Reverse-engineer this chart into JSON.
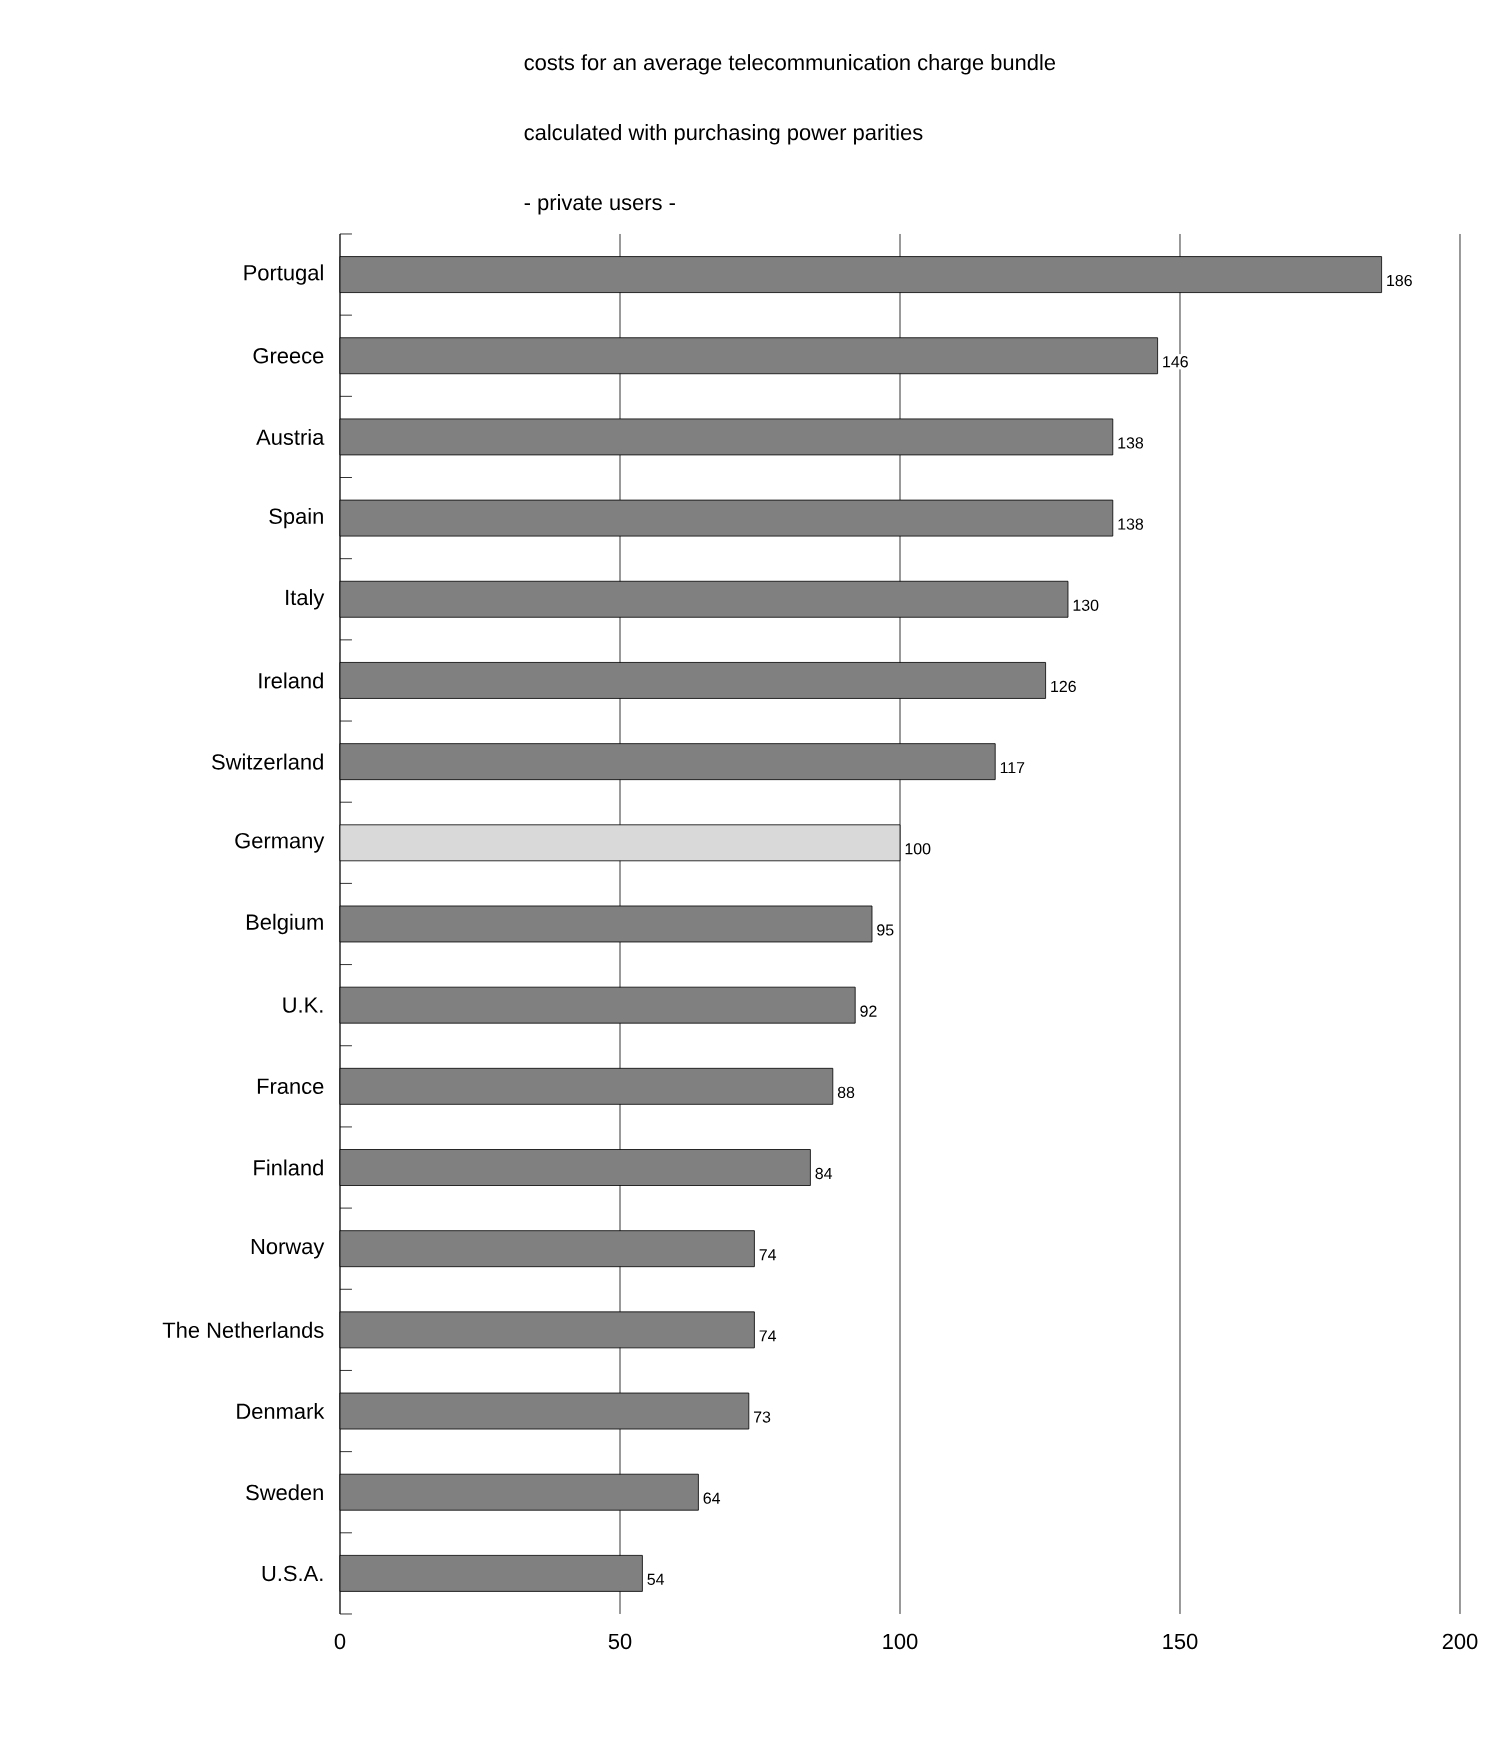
{
  "chart_data": {
    "type": "bar",
    "orientation": "horizontal",
    "title": "costs for an average telecommunication charge bundle",
    "subtitle": "calculated with purchasing power parities",
    "annotations": [
      "- private users -"
    ],
    "categories": [
      "Portugal",
      "Greece",
      "Austria",
      "Spain",
      "Italy",
      "Ireland",
      "Switzerland",
      "Germany",
      "Belgium",
      "U.K.",
      "France",
      "Finland",
      "Norway",
      "The Netherlands",
      "Denmark",
      "Sweden",
      "U.S.A."
    ],
    "values": [
      186,
      146,
      138,
      138,
      130,
      126,
      117,
      100,
      95,
      92,
      88,
      84,
      74,
      74,
      73,
      64,
      54
    ],
    "colors": [
      "#808080",
      "#808080",
      "#808080",
      "#808080",
      "#808080",
      "#808080",
      "#808080",
      "#d9d9d9",
      "#808080",
      "#808080",
      "#808080",
      "#808080",
      "#808080",
      "#808080",
      "#808080",
      "#808080",
      "#808080"
    ],
    "xlim": [
      0,
      200
    ],
    "xticks": [
      0,
      50,
      100,
      150,
      200
    ],
    "grid": "x",
    "data_labels": true
  }
}
